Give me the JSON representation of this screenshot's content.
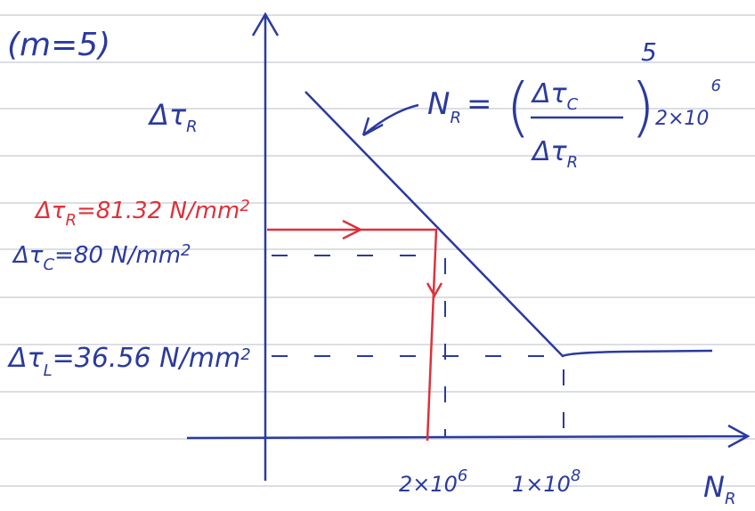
{
  "note": {
    "text": "(m=5)"
  },
  "y_axis_label": {
    "symbol": "Δτ",
    "sub": "R"
  },
  "x_axis_label": {
    "symbol": "N",
    "sub": "R"
  },
  "formula": {
    "lhs": "N",
    "lhs_sub": "R",
    "eq": "=",
    "numerator": "Δτ",
    "numerator_sub": "C",
    "denominator": "Δτ",
    "denominator_sub": "R",
    "exponent": "5",
    "factor": "2×10",
    "factor_exp": "6"
  },
  "levels": [
    {
      "symbol": "Δτ",
      "sub": "R",
      "text": "=81.32 N/mm",
      "sup": "2"
    },
    {
      "symbol": "Δτ",
      "sub": "C",
      "text": "=80 N/mm",
      "sup": "2"
    },
    {
      "symbol": "Δτ",
      "sub": "L",
      "text": "=36.56 N/mm",
      "sup": "2"
    }
  ],
  "x_ticks": [
    {
      "text": "2×10",
      "sup": "6"
    },
    {
      "text": "1×10",
      "sup": "8"
    }
  ]
}
